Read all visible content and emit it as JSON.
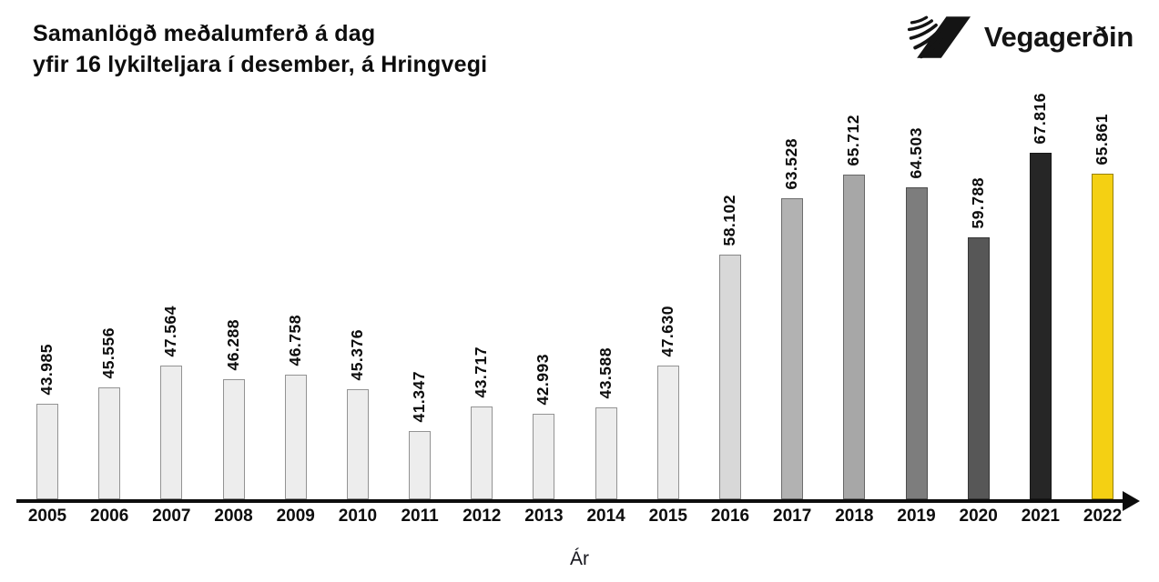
{
  "header": {
    "title_line1": "Samanlögð meðalumferð á dag",
    "title_line2": "yfir 16 lykilteljara í desember, á Hringvegi",
    "logo_text": "Vegagerðin"
  },
  "chart_data": {
    "type": "bar",
    "title": "Samanlögð meðalumferð á dag yfir 16 lykilteljara í desember, á Hringvegi",
    "xlabel": "Ár",
    "ylabel": "",
    "categories": [
      "2005",
      "2006",
      "2007",
      "2008",
      "2009",
      "2010",
      "2011",
      "2012",
      "2013",
      "2014",
      "2015",
      "2016",
      "2017",
      "2018",
      "2019",
      "2020",
      "2021",
      "2022"
    ],
    "values": [
      43985,
      45556,
      47564,
      46288,
      46758,
      45376,
      41347,
      43717,
      42993,
      43588,
      47630,
      58102,
      63528,
      65712,
      64503,
      59788,
      67816,
      65861
    ],
    "value_labels": [
      "43.985",
      "45.556",
      "47.564",
      "46.288",
      "46.758",
      "45.376",
      "41.347",
      "43.717",
      "42.993",
      "43.588",
      "47.630",
      "58.102",
      "63.528",
      "65.712",
      "64.503",
      "59.788",
      "67.816",
      "65.861"
    ],
    "bar_colors": [
      "#ededed",
      "#ededed",
      "#ededed",
      "#ededed",
      "#ededed",
      "#ededed",
      "#ededed",
      "#ededed",
      "#ededed",
      "#ededed",
      "#ededed",
      "#d8d8d8",
      "#b2b2b2",
      "#a7a7a7",
      "#7d7d7d",
      "#575757",
      "#262626",
      "#f4d013"
    ],
    "axis_color": "#0d0d0d",
    "accent_color": "#f4d013",
    "ylim": [
      34900,
      71000
    ],
    "grid": false,
    "legend": null,
    "value_label_rotation": 90,
    "separator": "thousands-dot"
  }
}
